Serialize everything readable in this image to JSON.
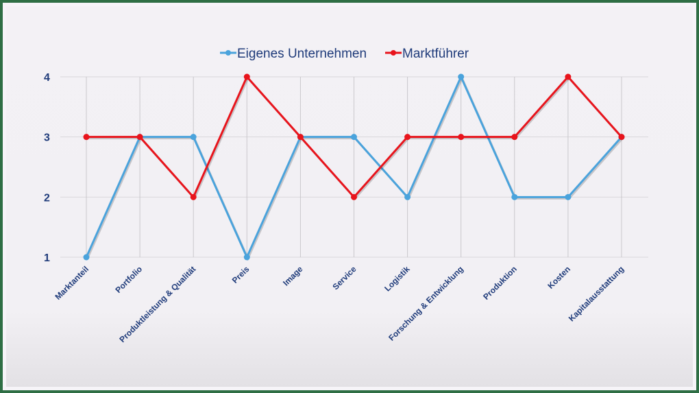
{
  "chart_data": {
    "type": "line",
    "title": "",
    "xlabel": "",
    "ylabel": "",
    "ylim": [
      1,
      4
    ],
    "yticks": [
      "1",
      "2",
      "3",
      "4"
    ],
    "grid": true,
    "legend_position": "top",
    "categories": [
      "Marktanteil",
      "Portfolio",
      "Produktleistung & Qualität",
      "Preis",
      "Image",
      "Service",
      "Logistik",
      "Forschung & Entwicklung",
      "Produktion",
      "Kosten",
      "Kapitalausstattung"
    ],
    "series": [
      {
        "name": "Eigenes Unternehmen",
        "color": "#4aa3dc",
        "values": [
          1,
          3,
          3,
          1,
          3,
          3,
          2,
          4,
          2,
          2,
          3
        ]
      },
      {
        "name": "Marktführer",
        "color": "#e8141c",
        "values": [
          3,
          3,
          2,
          4,
          3,
          2,
          3,
          3,
          3,
          4,
          3
        ]
      }
    ]
  },
  "legend": {
    "items": [
      {
        "label": "Eigenes Unternehmen",
        "color": "#4aa3dc"
      },
      {
        "label": "Marktführer",
        "color": "#e8141c"
      }
    ]
  },
  "colors": {
    "frame": "#2e6e44",
    "text": "#1f3b7a",
    "grid": "#d9d7db"
  }
}
